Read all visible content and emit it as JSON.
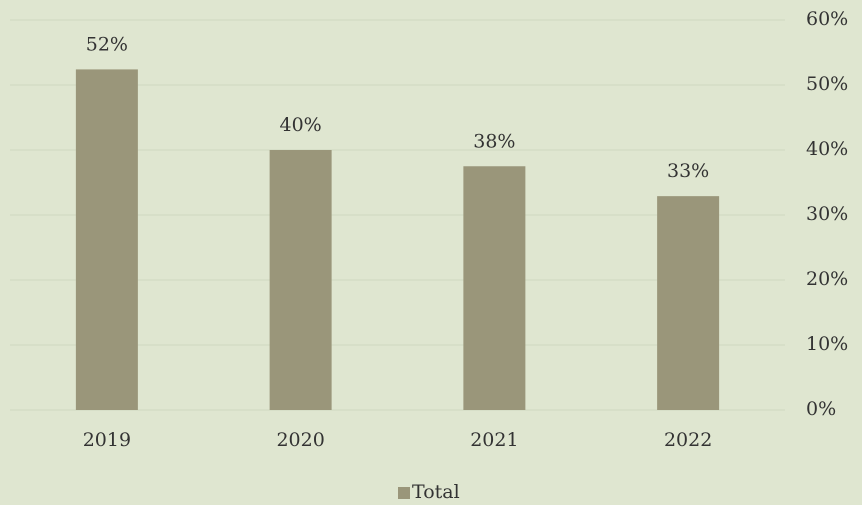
{
  "chart_data": {
    "type": "bar",
    "categories": [
      "2019",
      "2020",
      "2021",
      "2022"
    ],
    "series": [
      {
        "name": "Total",
        "color": "#9a967a",
        "values": [
          52.4,
          40,
          37.5,
          32.9
        ],
        "value_labels": [
          "52%",
          "40%",
          "38%",
          "33%"
        ]
      }
    ],
    "ylim": [
      0,
      60
    ],
    "yticks": [
      {
        "value": 0,
        "label": "0%"
      },
      {
        "value": 10,
        "label": "10%"
      },
      {
        "value": 20,
        "label": "20%"
      },
      {
        "value": 30,
        "label": "30%"
      },
      {
        "value": 40,
        "label": "40%"
      },
      {
        "value": 50,
        "label": "50%"
      },
      {
        "value": 60,
        "label": "60%"
      }
    ],
    "y_axis_side": "right",
    "grid": true,
    "legend": "bottom"
  }
}
